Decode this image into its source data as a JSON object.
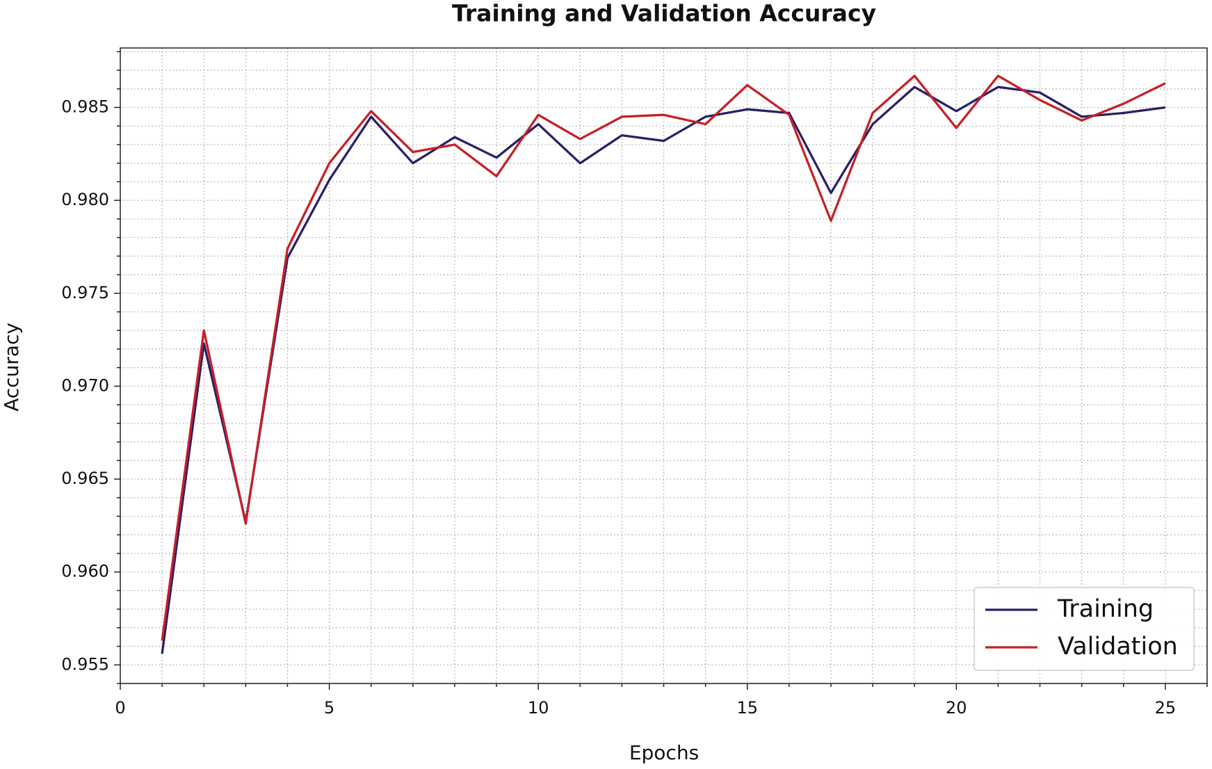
{
  "chart_data": {
    "type": "line",
    "title": "Training and Validation Accuracy",
    "x_label": "Epochs",
    "y_label": "Accuracy",
    "x": [
      1,
      2,
      3,
      4,
      5,
      6,
      7,
      8,
      9,
      10,
      11,
      12,
      13,
      14,
      15,
      16,
      17,
      18,
      19,
      20,
      21,
      22,
      23,
      24,
      25
    ],
    "series": [
      {
        "name": "Training",
        "color": "#2a1f66",
        "values": [
          0.9556,
          0.9723,
          0.9627,
          0.9769,
          0.9811,
          0.9845,
          0.982,
          0.9834,
          0.9823,
          0.9841,
          0.982,
          0.9835,
          0.9832,
          0.9845,
          0.9849,
          0.9847,
          0.9804,
          0.9841,
          0.9861,
          0.9848,
          0.9861,
          0.9858,
          0.9845,
          0.9847,
          0.985
        ]
      },
      {
        "name": "Validation",
        "color": "#c42127",
        "values": [
          0.9563,
          0.973,
          0.9626,
          0.9774,
          0.982,
          0.9848,
          0.9826,
          0.983,
          0.9813,
          0.9846,
          0.9833,
          0.9845,
          0.9846,
          0.9841,
          0.9862,
          0.9846,
          0.9789,
          0.9847,
          0.9867,
          0.9839,
          0.9867,
          0.9854,
          0.9843,
          0.9852,
          0.9863
        ]
      }
    ],
    "xlim": [
      0,
      26
    ],
    "ylim": [
      0.954,
      0.9882
    ],
    "xticks": [
      0,
      5,
      10,
      15,
      20,
      25
    ],
    "yticks": [
      0.955,
      {
        "value": 0.96,
        "label": "0.960"
      },
      0.965,
      {
        "value": 0.97,
        "label": "0.970"
      },
      0.975,
      {
        "value": 0.98,
        "label": "0.980"
      },
      0.985
    ],
    "xminorticks": [
      1,
      2,
      3,
      4,
      6,
      7,
      8,
      9,
      11,
      12,
      13,
      14,
      16,
      17,
      18,
      19,
      21,
      22,
      23,
      24,
      26
    ],
    "yminorticks": [
      0.954,
      0.956,
      0.957,
      0.958,
      0.959,
      0.961,
      0.962,
      0.963,
      0.964,
      0.966,
      0.967,
      0.968,
      0.969,
      0.971,
      0.972,
      0.973,
      0.974,
      0.976,
      0.977,
      0.978,
      0.979,
      0.981,
      0.982,
      0.983,
      0.984,
      0.986,
      0.987,
      0.988
    ],
    "grid": true,
    "legend": "lower right"
  }
}
